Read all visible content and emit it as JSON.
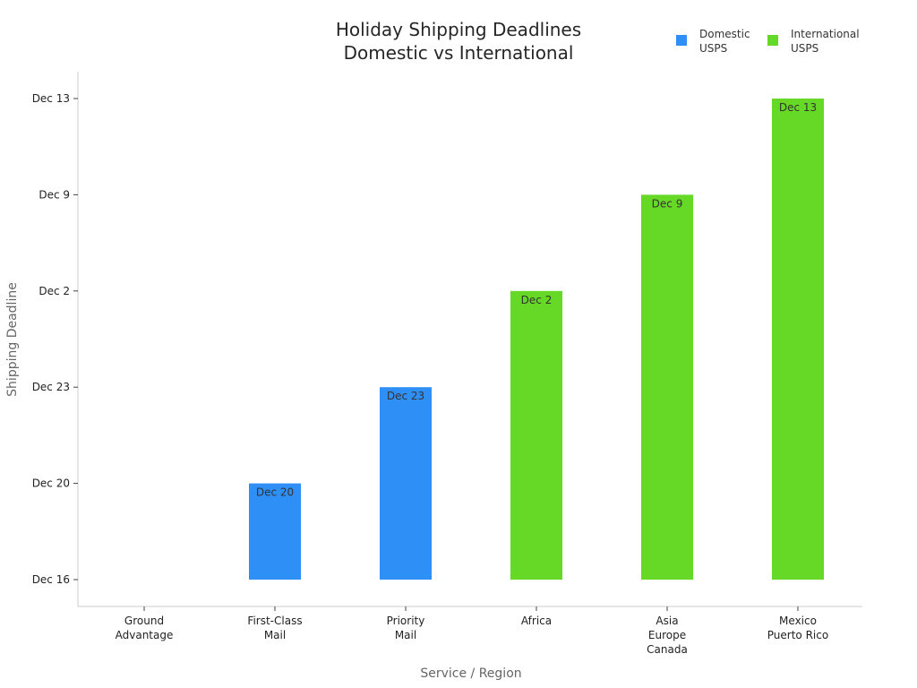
{
  "chart_data": {
    "type": "bar",
    "title": [
      "Holiday Shipping Deadlines",
      "Domestic vs International"
    ],
    "xlabel": "Service / Region",
    "ylabel": "Shipping Deadline",
    "categories": [
      [
        "Ground",
        "Advantage"
      ],
      [
        "First-Class",
        "Mail"
      ],
      [
        "Priority",
        "Mail"
      ],
      [
        "Africa"
      ],
      [
        "Asia",
        "Europe",
        "Canada"
      ],
      [
        "Mexico",
        "Puerto Rico"
      ]
    ],
    "y_ticks": [
      "Dec 16",
      "Dec 20",
      "Dec 23",
      "Dec 2",
      "Dec 9",
      "Dec 13"
    ],
    "series": [
      {
        "name": [
          "Domestic",
          "USPS"
        ],
        "color": "#2e90f7",
        "values": [
          null,
          "Dec 20",
          "Dec 23",
          null,
          null,
          null
        ]
      },
      {
        "name": [
          "International",
          "USPS"
        ],
        "color": "#66d926",
        "values": [
          null,
          null,
          null,
          "Dec 2",
          "Dec 9",
          "Dec 13"
        ]
      }
    ],
    "bar_labels": [
      "",
      "Dec 20",
      "Dec 23",
      "Dec 2",
      "Dec 9",
      "Dec 13"
    ],
    "legend_position": "top-right",
    "grid": false
  }
}
